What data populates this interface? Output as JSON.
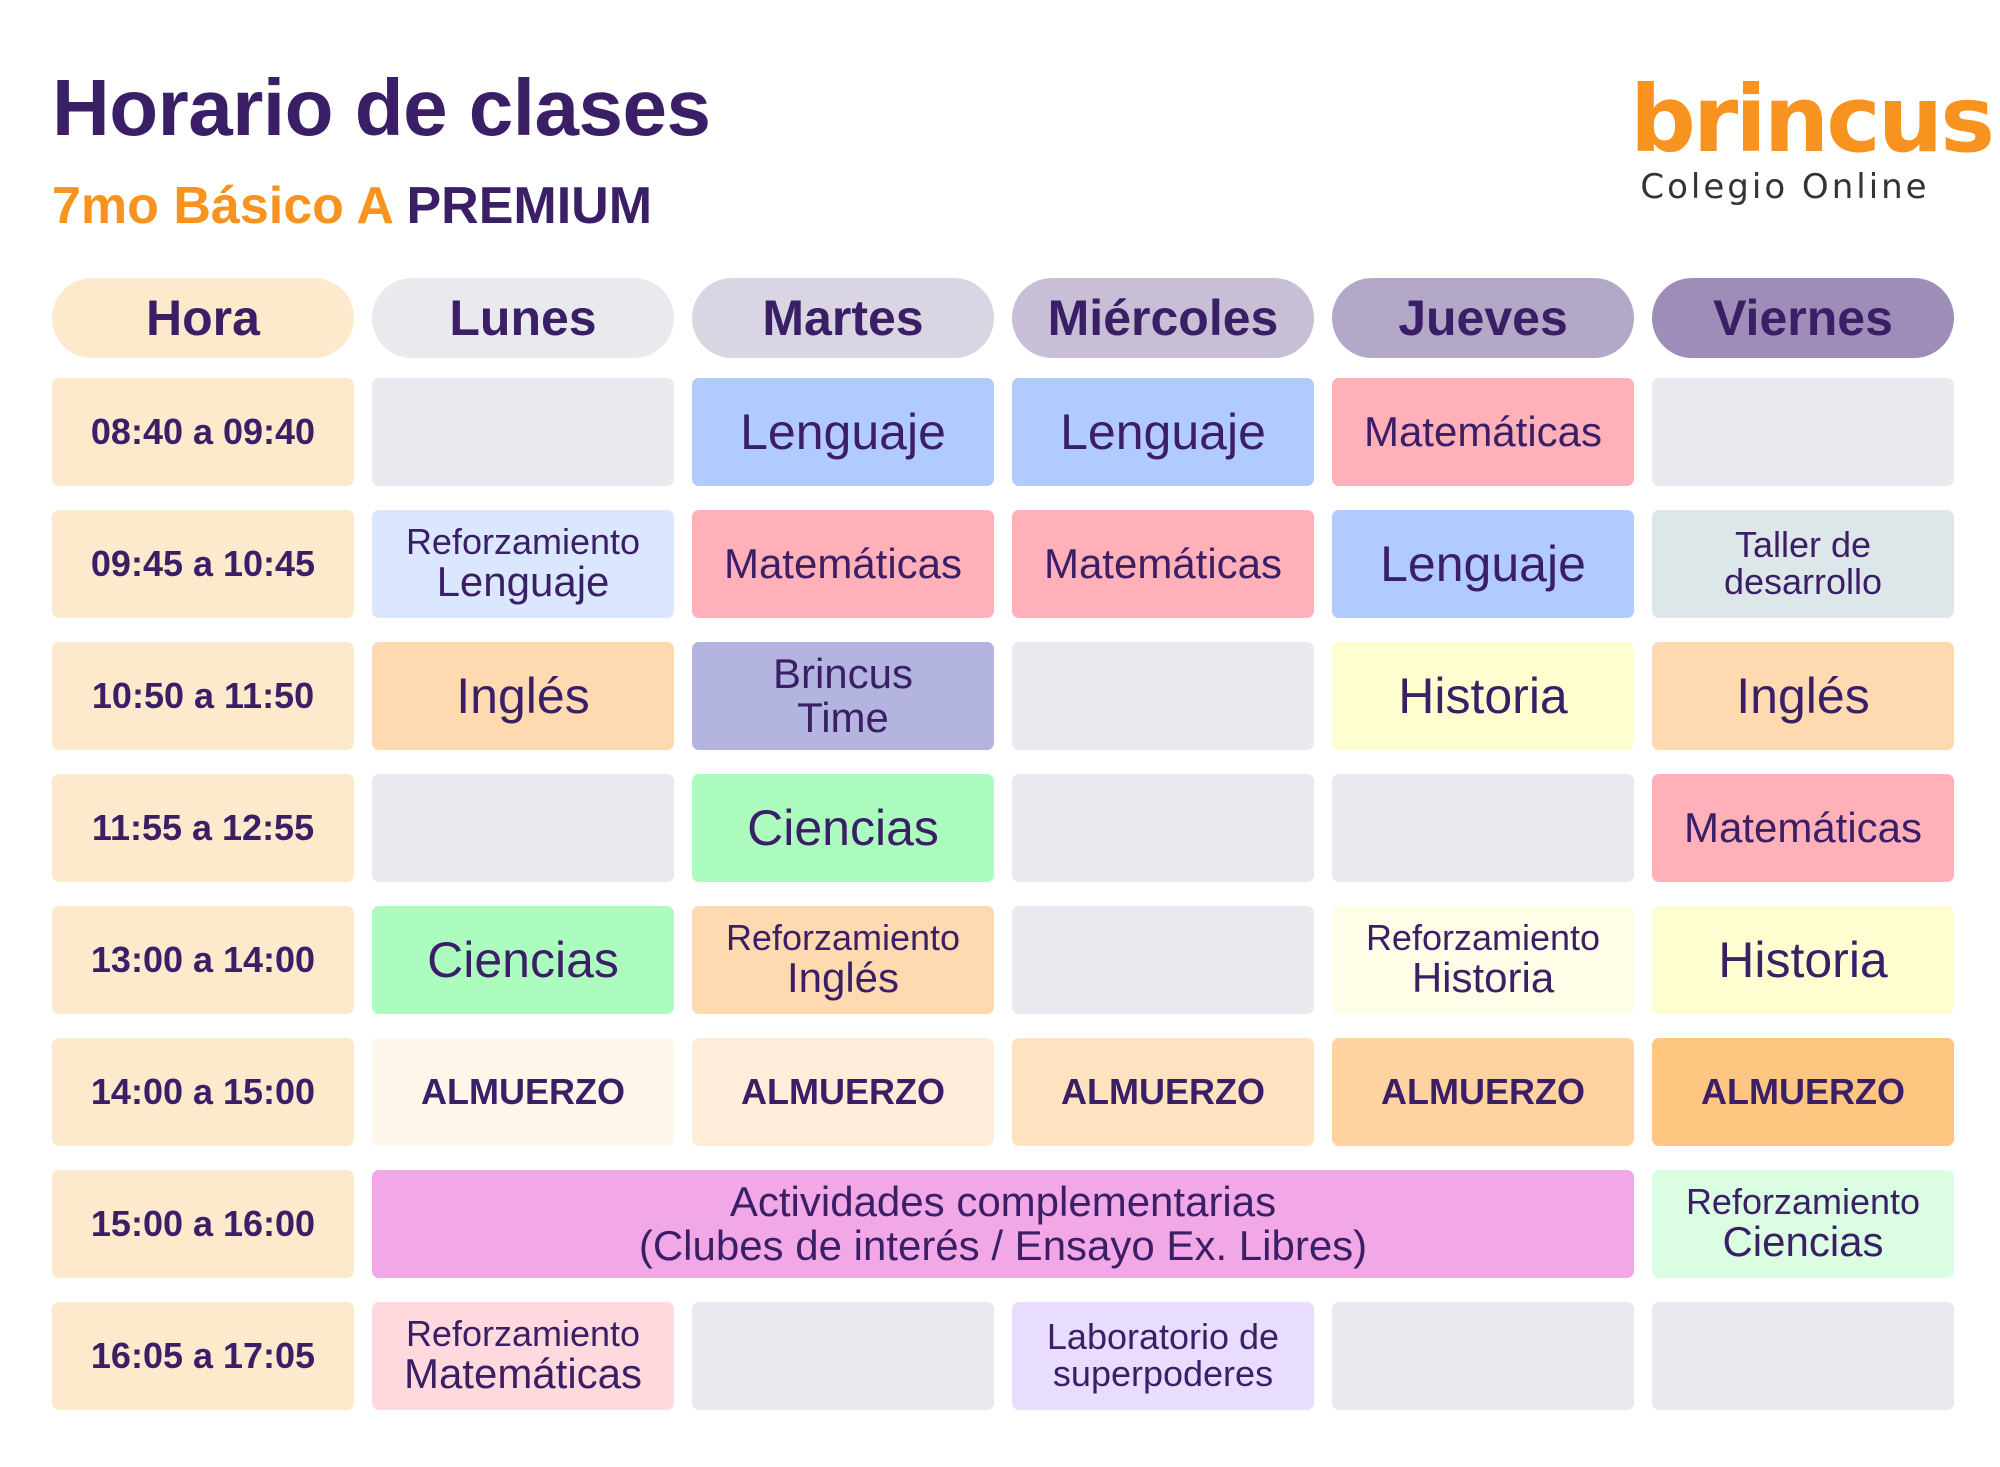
{
  "header": {
    "title": "Horario de clases",
    "subtitle_part1": "7mo Básico A",
    "subtitle_part2": "PREMIUM"
  },
  "brand": {
    "name": "brincus",
    "tagline": "Colegio Online"
  },
  "days": [
    "Hora",
    "Lunes",
    "Martes",
    "Miércoles",
    "Jueves",
    "Viernes"
  ],
  "rows": [
    {
      "time": "08:40 a 09:40",
      "cells": [
        {
          "l1": "",
          "l2": ""
        },
        {
          "l1": "Lenguaje",
          "l2": ""
        },
        {
          "l1": "Lenguaje",
          "l2": ""
        },
        {
          "l1": "Matemáticas",
          "l2": ""
        },
        {
          "l1": "",
          "l2": ""
        }
      ]
    },
    {
      "time": "09:45 a 10:45",
      "cells": [
        {
          "l1": "Reforzamiento",
          "l2": "Lenguaje"
        },
        {
          "l1": "Matemáticas",
          "l2": ""
        },
        {
          "l1": "Matemáticas",
          "l2": ""
        },
        {
          "l1": "Lenguaje",
          "l2": ""
        },
        {
          "l1": "Taller de",
          "l2": "desarrollo"
        }
      ]
    },
    {
      "time": "10:50 a 11:50",
      "cells": [
        {
          "l1": "Inglés",
          "l2": ""
        },
        {
          "l1": "Brincus",
          "l2": "Time"
        },
        {
          "l1": "",
          "l2": ""
        },
        {
          "l1": "Historia",
          "l2": ""
        },
        {
          "l1": "Inglés",
          "l2": ""
        }
      ]
    },
    {
      "time": "11:55 a 12:55",
      "cells": [
        {
          "l1": "",
          "l2": ""
        },
        {
          "l1": "Ciencias",
          "l2": ""
        },
        {
          "l1": "",
          "l2": ""
        },
        {
          "l1": "",
          "l2": ""
        },
        {
          "l1": "Matemáticas",
          "l2": ""
        }
      ]
    },
    {
      "time": "13:00 a 14:00",
      "cells": [
        {
          "l1": "Ciencias",
          "l2": ""
        },
        {
          "l1": "Reforzamiento",
          "l2": "Inglés"
        },
        {
          "l1": "",
          "l2": ""
        },
        {
          "l1": "Reforzamiento",
          "l2": "Historia"
        },
        {
          "l1": "Historia",
          "l2": ""
        }
      ]
    },
    {
      "time": "14:00 a 15:00",
      "cells": [
        {
          "l1": "ALMUERZO",
          "l2": ""
        },
        {
          "l1": "ALMUERZO",
          "l2": ""
        },
        {
          "l1": "ALMUERZO",
          "l2": ""
        },
        {
          "l1": "ALMUERZO",
          "l2": ""
        },
        {
          "l1": "ALMUERZO",
          "l2": ""
        }
      ]
    },
    {
      "time": "15:00 a 16:00",
      "cells": [
        {
          "l1": "Actividades complementarias",
          "l2": "(Clubes de interés / Ensayo Ex. Libres)"
        },
        {
          "l1": "Reforzamiento",
          "l2": "Ciencias"
        }
      ]
    },
    {
      "time": "16:05 a 17:05",
      "cells": [
        {
          "l1": "Reforzamiento",
          "l2": "Matemáticas"
        },
        {
          "l1": "",
          "l2": ""
        },
        {
          "l1": "Laboratorio de",
          "l2": "superpoderes"
        },
        {
          "l1": "",
          "l2": ""
        },
        {
          "l1": "",
          "l2": ""
        }
      ]
    }
  ],
  "colors": {
    "title": "#3a1f66",
    "accent_orange": "#f7931e",
    "hour_column": "#fde9cc",
    "empty_cell": "#ebe9ef",
    "lenguaje": "#b2cbff",
    "matematicas": "#ffb0b8",
    "ingles": "#ffdab0",
    "ciencias": "#adfcbf",
    "historia": "#fffed0",
    "brincus_time": "#b3b4e0",
    "actividades": "#f2a8e6",
    "laboratorio": "#e8dcff",
    "day_headers": [
      "#fde9cc",
      "#eae9ee",
      "#dad5e2",
      "#c8bfd6",
      "#b3a8c8",
      "#9e8db8"
    ],
    "lunch_cells": [
      "#fff6ea",
      "#ffedd9",
      "#ffe2c0",
      "#ffd39f",
      "#ffc682"
    ]
  }
}
